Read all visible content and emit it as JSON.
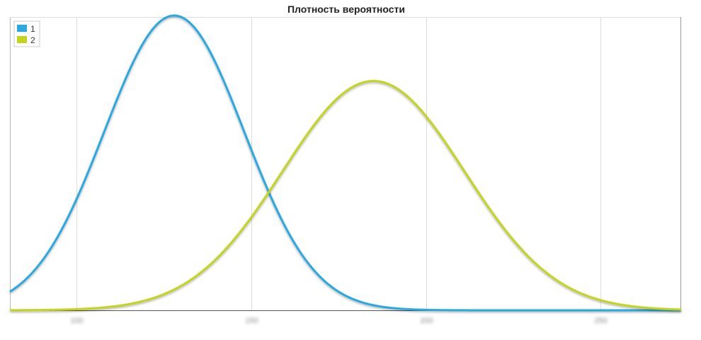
{
  "chart_data": {
    "type": "line",
    "title": "Плотность вероятности",
    "xlabel": "",
    "ylabel": "",
    "x_ticks": [
      "100",
      "150",
      "200",
      "250"
    ],
    "xlim": [
      81,
      273
    ],
    "ylim": [
      0,
      1
    ],
    "grid": {
      "vertical": true,
      "horizontal": false
    },
    "legend": {
      "position": "top-left",
      "entries": [
        "1",
        "2"
      ]
    },
    "series": [
      {
        "name": "1",
        "color": "#29a9e1",
        "mean": 128,
        "sd": 20,
        "peak": 1.0
      },
      {
        "name": "2",
        "color": "#c3d41c",
        "mean": 185,
        "sd": 26,
        "peak": 0.778
      }
    ]
  }
}
